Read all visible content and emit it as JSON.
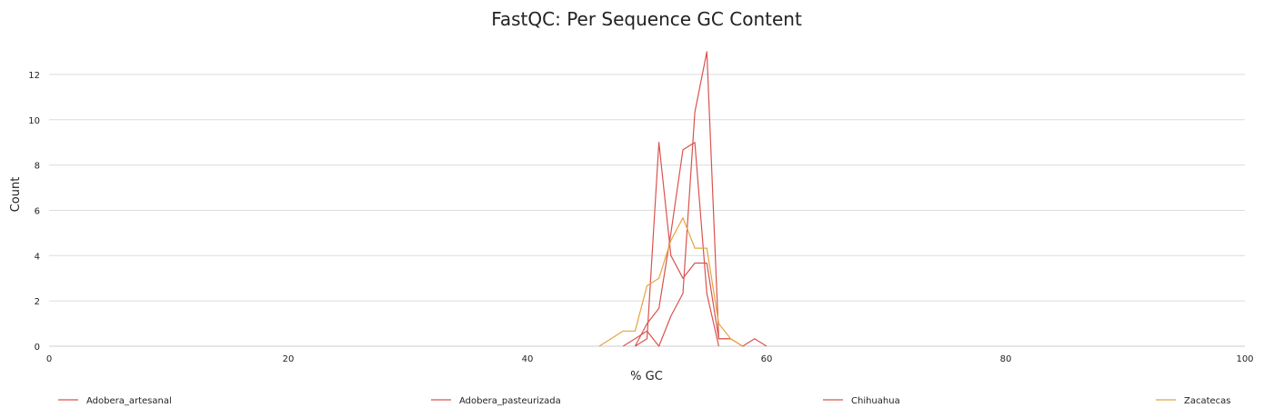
{
  "chart_data": {
    "type": "line",
    "title": "FastQC: Per Sequence GC Content",
    "xlabel": "% GC",
    "ylabel": "Count",
    "xlim": [
      0,
      100
    ],
    "ylim": [
      0,
      13
    ],
    "x_ticks": [
      0,
      20,
      40,
      60,
      80,
      100
    ],
    "y_ticks": [
      0,
      2,
      4,
      6,
      8,
      10,
      12
    ],
    "grid": "horizontal",
    "legend_position": "bottom",
    "series": [
      {
        "name": "Adobera_artesanal",
        "color": "#d9534f",
        "x": [
          49,
          50,
          51,
          52,
          53,
          54,
          55,
          56,
          57
        ],
        "y": [
          0,
          0.33,
          9,
          4,
          3,
          3.67,
          3.67,
          0.33,
          0.33
        ]
      },
      {
        "name": "Adobera_pasteurizada",
        "color": "#d9534f",
        "x": [
          48,
          49,
          50,
          51,
          52,
          53,
          54,
          55,
          56,
          57,
          58,
          59,
          60
        ],
        "y": [
          0,
          0.33,
          0.67,
          0,
          1.33,
          2.33,
          10.33,
          13,
          0.33,
          0.33,
          0,
          0.33,
          0
        ]
      },
      {
        "name": "Chihuahua",
        "color": "#d9534f",
        "x": [
          49,
          50,
          51,
          52,
          53,
          54,
          55,
          56
        ],
        "y": [
          0,
          1,
          1.67,
          5,
          8.67,
          9,
          2.33,
          0
        ]
      },
      {
        "name": "Zacatecas",
        "color": "#e8a33d",
        "x": [
          46,
          47,
          48,
          49,
          50,
          51,
          52,
          53,
          54,
          55,
          56,
          57,
          58
        ],
        "y": [
          0,
          0.33,
          0.67,
          0.67,
          2.67,
          3,
          4.67,
          5.67,
          4.33,
          4.33,
          1,
          0.33,
          0
        ]
      }
    ]
  }
}
